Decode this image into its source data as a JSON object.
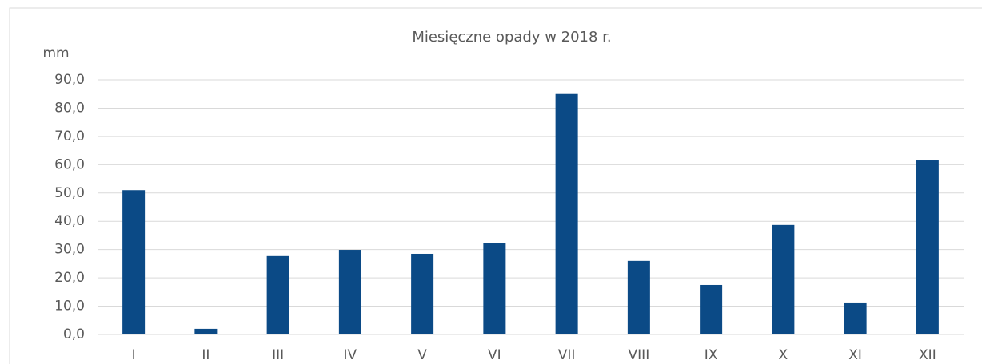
{
  "chart_data": {
    "type": "bar",
    "title": "Miesięczne opady w 2018 r.",
    "y_label": "mm",
    "categories": [
      "I",
      "II",
      "III",
      "IV",
      "V",
      "VI",
      "VII",
      "VIII",
      "IX",
      "X",
      "XI",
      "XII"
    ],
    "values": [
      51.0,
      2.0,
      27.7,
      29.9,
      28.5,
      32.2,
      85.0,
      26.0,
      17.5,
      38.7,
      11.3,
      61.5
    ],
    "color": "#0b4a86",
    "ylim": [
      0,
      90
    ],
    "yticks": [
      {
        "value": 0,
        "label": "0,0"
      },
      {
        "value": 10,
        "label": "10,0"
      },
      {
        "value": 20,
        "label": "20,0"
      },
      {
        "value": 30,
        "label": "30,0"
      },
      {
        "value": 40,
        "label": "40,0"
      },
      {
        "value": 50,
        "label": "50,0"
      },
      {
        "value": 60,
        "label": "60,0"
      },
      {
        "value": 70,
        "label": "70,0"
      },
      {
        "value": 80,
        "label": "80,0"
      },
      {
        "value": 90,
        "label": "90,0"
      }
    ],
    "grid": true
  }
}
